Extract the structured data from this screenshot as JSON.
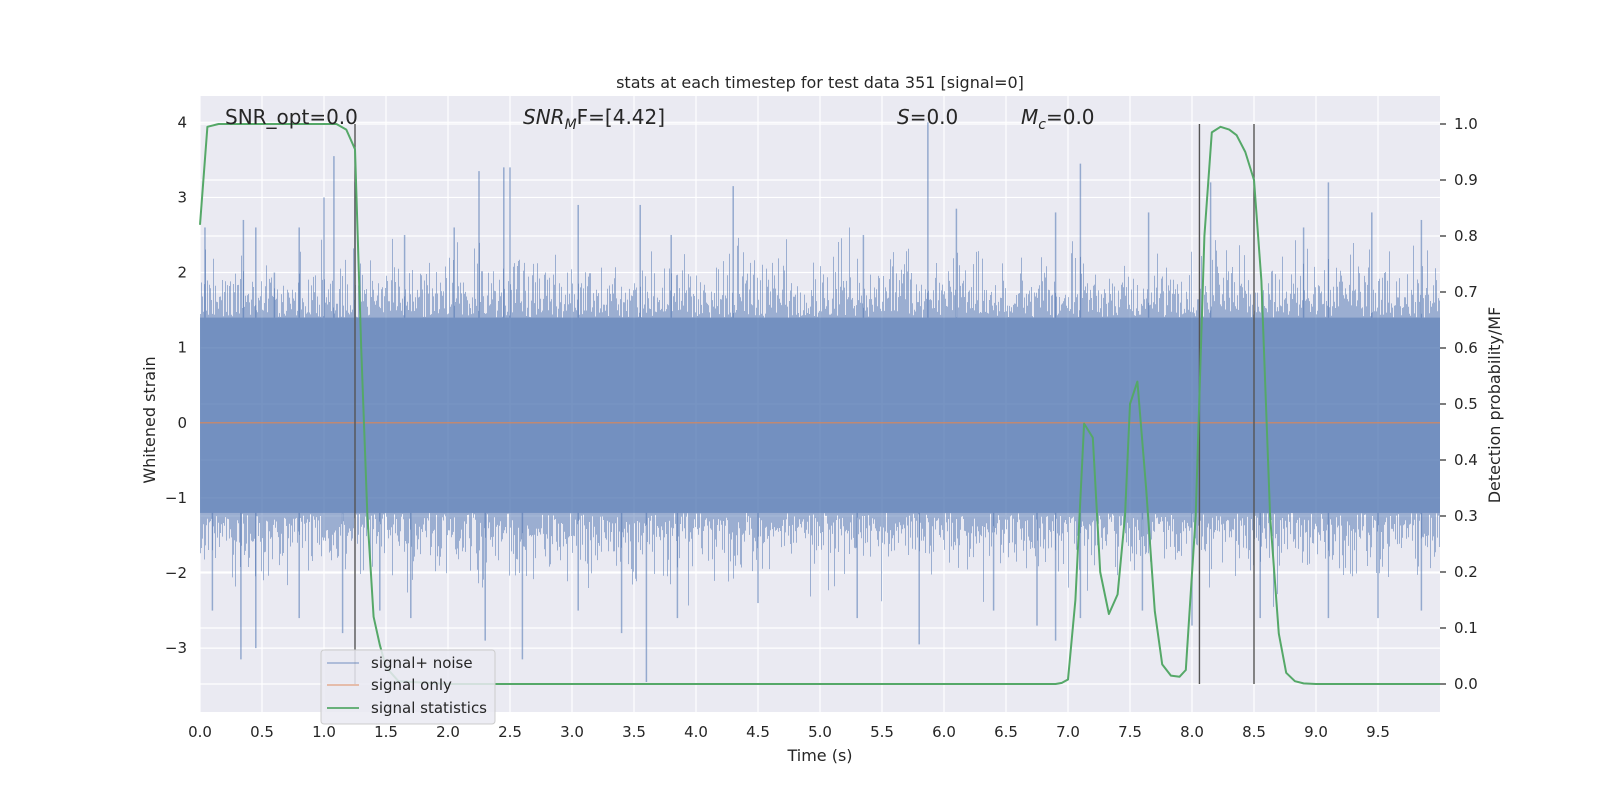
{
  "chart_data": {
    "type": "line",
    "title": "stats at each timestep for test data 351 [signal=0]",
    "xlabel": "Time (s)",
    "ylabel": "Whitened strain",
    "ylabel_right": "Detection probability/MF",
    "xlim": [
      0.0,
      10.0
    ],
    "ylim": [
      -3.85,
      4.35
    ],
    "ylim_right": [
      -0.05,
      1.05
    ],
    "xticks": [
      "0.0",
      "0.5",
      "1.0",
      "1.5",
      "2.0",
      "2.5",
      "3.0",
      "3.5",
      "4.0",
      "4.5",
      "5.0",
      "5.5",
      "6.0",
      "6.5",
      "7.0",
      "7.5",
      "8.0",
      "8.5",
      "9.0",
      "9.5"
    ],
    "xtick_values": [
      0.0,
      0.5,
      1.0,
      1.5,
      2.0,
      2.5,
      3.0,
      3.5,
      4.0,
      4.5,
      5.0,
      5.5,
      6.0,
      6.5,
      7.0,
      7.5,
      8.0,
      8.5,
      9.0,
      9.5
    ],
    "yticks": [
      "4",
      "3",
      "2",
      "1",
      "0",
      "−1",
      "−2",
      "−3"
    ],
    "ytick_values": [
      4,
      3,
      2,
      1,
      0,
      -1,
      -2,
      -3
    ],
    "yticks_right": [
      "1.0",
      "0.9",
      "0.8",
      "0.7",
      "0.6",
      "0.5",
      "0.4",
      "0.3",
      "0.2",
      "0.1",
      "0.0"
    ],
    "ytick_right_values": [
      1.0,
      0.9,
      0.8,
      0.7,
      0.6,
      0.5,
      0.4,
      0.3,
      0.2,
      0.1,
      0.0
    ],
    "annotations": {
      "snr_opt": "SNR_opt=0.0",
      "snr_mf_label": "SNR",
      "snr_mf_sub": "M",
      "snr_mf_rest": "F=[4.42]",
      "s_label": "S",
      "s_value": "=0.0",
      "mc_label": "M",
      "mc_sub": "c",
      "mc_value": "=0.0"
    },
    "vertical_markers": [
      1.25,
      8.06,
      8.5
    ],
    "series": [
      {
        "name": "signal+ noise",
        "color": "#4c72b0",
        "note": "dense whitened noise, amplitude roughly -3.5 to 4.0",
        "envelope": {
          "core_low": -1.2,
          "core_high": 1.4,
          "typical_low": -2.5,
          "typical_high": 2.6
        },
        "peaks": [
          {
            "x": 0.04,
            "y": 2.6
          },
          {
            "x": 0.35,
            "y": 2.7
          },
          {
            "x": 0.45,
            "y": 2.6
          },
          {
            "x": 0.6,
            "y": 2.0
          },
          {
            "x": 0.8,
            "y": 2.6
          },
          {
            "x": 1.0,
            "y": 3.0
          },
          {
            "x": 1.08,
            "y": 3.55
          },
          {
            "x": 1.25,
            "y": 3.2
          },
          {
            "x": 1.65,
            "y": 2.5
          },
          {
            "x": 2.05,
            "y": 2.6
          },
          {
            "x": 2.25,
            "y": 3.35
          },
          {
            "x": 2.45,
            "y": 3.4
          },
          {
            "x": 2.5,
            "y": 3.4
          },
          {
            "x": 3.05,
            "y": 2.9
          },
          {
            "x": 3.55,
            "y": 2.9
          },
          {
            "x": 3.8,
            "y": 2.5
          },
          {
            "x": 4.3,
            "y": 3.15
          },
          {
            "x": 5.35,
            "y": 2.5
          },
          {
            "x": 5.87,
            "y": 4.0
          },
          {
            "x": 6.1,
            "y": 2.85
          },
          {
            "x": 6.9,
            "y": 2.8
          },
          {
            "x": 7.1,
            "y": 3.45
          },
          {
            "x": 7.65,
            "y": 2.8
          },
          {
            "x": 8.15,
            "y": 3.2
          },
          {
            "x": 8.9,
            "y": 2.6
          },
          {
            "x": 9.1,
            "y": 3.2
          },
          {
            "x": 9.45,
            "y": 2.8
          },
          {
            "x": 9.85,
            "y": 2.7
          }
        ],
        "troughs": [
          {
            "x": 0.1,
            "y": -2.5
          },
          {
            "x": 0.33,
            "y": -3.15
          },
          {
            "x": 0.45,
            "y": -3.0
          },
          {
            "x": 0.8,
            "y": -2.6
          },
          {
            "x": 1.15,
            "y": -2.8
          },
          {
            "x": 1.45,
            "y": -2.5
          },
          {
            "x": 1.7,
            "y": -2.6
          },
          {
            "x": 2.3,
            "y": -2.9
          },
          {
            "x": 2.6,
            "y": -3.15
          },
          {
            "x": 3.05,
            "y": -2.5
          },
          {
            "x": 3.4,
            "y": -2.8
          },
          {
            "x": 3.6,
            "y": -3.45
          },
          {
            "x": 3.85,
            "y": -2.6
          },
          {
            "x": 4.5,
            "y": -2.4
          },
          {
            "x": 5.3,
            "y": -2.6
          },
          {
            "x": 5.8,
            "y": -2.95
          },
          {
            "x": 6.4,
            "y": -2.5
          },
          {
            "x": 6.75,
            "y": -2.7
          },
          {
            "x": 6.9,
            "y": -2.9
          },
          {
            "x": 7.1,
            "y": -2.6
          },
          {
            "x": 7.6,
            "y": -2.5
          },
          {
            "x": 8.0,
            "y": -2.7
          },
          {
            "x": 8.55,
            "y": -2.6
          },
          {
            "x": 9.1,
            "y": -2.6
          },
          {
            "x": 9.5,
            "y": -2.6
          },
          {
            "x": 9.85,
            "y": -2.5
          }
        ]
      },
      {
        "name": "signal only",
        "color": "#dd8452",
        "x": [
          0.0,
          10.0
        ],
        "y": [
          0.0,
          0.0
        ]
      },
      {
        "name": "signal statistics",
        "color": "#55a868",
        "axis": "right",
        "x": [
          0.0,
          0.06,
          0.15,
          0.3,
          0.6,
          0.9,
          1.1,
          1.18,
          1.25,
          1.3,
          1.35,
          1.4,
          1.45,
          1.5,
          1.6,
          2.0,
          3.0,
          4.0,
          5.0,
          6.0,
          6.9,
          6.95,
          7.0,
          7.06,
          7.13,
          7.2,
          7.26,
          7.33,
          7.4,
          7.46,
          7.5,
          7.56,
          7.63,
          7.7,
          7.76,
          7.83,
          7.9,
          7.95,
          8.03,
          8.1,
          8.16,
          8.23,
          8.3,
          8.36,
          8.43,
          8.5,
          8.56,
          8.63,
          8.7,
          8.76,
          8.83,
          8.9,
          9.0,
          9.2,
          9.5,
          10.0
        ],
        "y": [
          0.82,
          0.995,
          1.0,
          1.0,
          1.0,
          1.0,
          1.0,
          0.99,
          0.955,
          0.6,
          0.3,
          0.12,
          0.07,
          0.03,
          0.005,
          0.0,
          0.0,
          0.0,
          0.0,
          0.0,
          0.0,
          0.002,
          0.008,
          0.15,
          0.465,
          0.44,
          0.2,
          0.125,
          0.16,
          0.3,
          0.5,
          0.54,
          0.35,
          0.13,
          0.035,
          0.015,
          0.013,
          0.025,
          0.3,
          0.8,
          0.985,
          0.995,
          0.99,
          0.98,
          0.95,
          0.9,
          0.72,
          0.3,
          0.09,
          0.02,
          0.005,
          0.001,
          0.0,
          0.0,
          0.0,
          0.0
        ]
      }
    ],
    "legend": {
      "position": "lower-left",
      "entries": [
        "signal+ noise",
        "signal only",
        "signal statistics"
      ]
    },
    "colors": {
      "plot_bg": "#eaeaf2",
      "grid": "#ffffff",
      "marker": "#555555"
    }
  }
}
